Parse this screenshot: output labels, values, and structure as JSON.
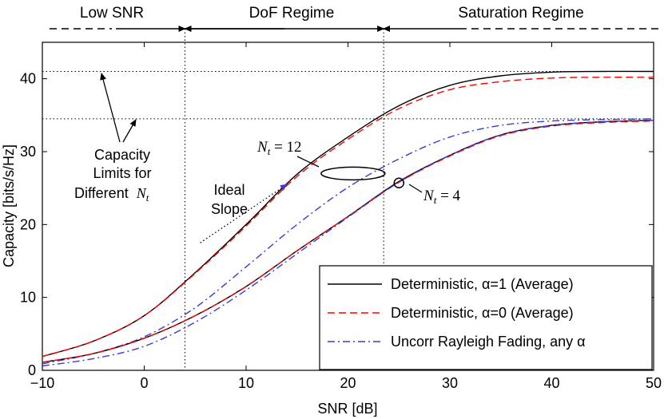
{
  "chart_data": {
    "type": "line",
    "xlabel": "SNR [dB]",
    "ylabel": "Capacity [bits/s/Hz]",
    "xlim": [
      -10,
      50
    ],
    "ylim": [
      0,
      45
    ],
    "xticks": [
      "−10",
      "0",
      "10",
      "20",
      "30",
      "40",
      "50"
    ],
    "xtick_values": [
      -10,
      0,
      10,
      20,
      30,
      40,
      50
    ],
    "yticks": [
      "0",
      "10",
      "20",
      "30",
      "40"
    ],
    "ytick_values": [
      0,
      10,
      20,
      30,
      40
    ],
    "x": [
      -10,
      -5,
      0,
      5,
      10,
      15,
      20,
      25,
      30,
      35,
      40,
      45,
      50
    ],
    "series": [
      {
        "name": "Nt=12 Deterministic a=1",
        "legend_group": "det1",
        "color": "#000000",
        "dash": "",
        "values": [
          1.9,
          4.0,
          7.5,
          13.4,
          20.0,
          26.9,
          32.0,
          36.3,
          39.1,
          40.4,
          40.9,
          41.0,
          41.0
        ]
      },
      {
        "name": "Nt=12 Deterministic a=0",
        "legend_group": "det0",
        "color": "#ff0000",
        "dash": "9,5",
        "values": [
          1.9,
          4.0,
          7.5,
          13.3,
          19.8,
          26.6,
          31.7,
          35.9,
          38.5,
          39.6,
          40.1,
          40.2,
          40.2
        ]
      },
      {
        "name": "Nt=12 Uncorr Rayleigh",
        "legend_group": "ray",
        "color": "#3a3ad8",
        "dash": "9,4,2,4",
        "values": [
          0.9,
          2.3,
          4.6,
          8.6,
          14.2,
          20.0,
          25.1,
          29.0,
          32.0,
          33.6,
          34.2,
          34.4,
          34.5
        ]
      },
      {
        "name": "Nt=4 Deterministic a=1",
        "legend_group": "det1",
        "color": "#000000",
        "dash": "",
        "values": [
          1.1,
          2.3,
          4.4,
          7.5,
          11.5,
          16.4,
          21.1,
          25.9,
          29.5,
          32.3,
          33.6,
          34.1,
          34.3
        ]
      },
      {
        "name": "Nt=4 Deterministic a=0",
        "legend_group": "det0",
        "color": "#ff0000",
        "dash": "9,5",
        "values": [
          1.1,
          2.3,
          4.4,
          7.5,
          11.5,
          16.4,
          21.1,
          25.8,
          29.4,
          32.2,
          33.5,
          34.0,
          34.2
        ]
      },
      {
        "name": "Nt=4 Uncorr Rayleigh",
        "legend_group": "ray",
        "color": "#3a3ad8",
        "dash": "9,4,2,4",
        "values": [
          0.6,
          1.6,
          3.3,
          6.6,
          11.0,
          16.0,
          21.0,
          25.8,
          29.5,
          32.3,
          33.6,
          34.1,
          34.3
        ]
      }
    ],
    "legend": [
      {
        "key": "det1",
        "label": "Deterministic, α=1 (Average)",
        "color": "#000000",
        "dash": ""
      },
      {
        "key": "det0",
        "label": "Deterministic, α=0 (Average)",
        "color": "#ff0000",
        "dash": "9,5"
      },
      {
        "key": "ray",
        "label": "Uncorr Rayleigh Fading, any α",
        "color": "#3a3ad8",
        "dash": "9,4,2,4"
      }
    ],
    "legend_position": "bottom-right",
    "reference_lines": {
      "horizontal_limits": [
        41.0,
        34.5
      ],
      "vertical_boundaries": [
        4,
        23.5
      ]
    },
    "regions": [
      {
        "label": "Low SNR",
        "from": -10,
        "to": 4
      },
      {
        "label": "DoF Regime",
        "from": 4,
        "to": 23.5
      },
      {
        "label": "Saturation Regime",
        "from": 23.5,
        "to": 50
      }
    ],
    "ideal_slope": {
      "label_line1": "Ideal",
      "label_line2": "Slope",
      "from": [
        5.5,
        17.5
      ],
      "to": [
        14,
        25.5
      ]
    },
    "annotations": {
      "capacity_limits": {
        "line1": "Capacity",
        "line2": "Limits for",
        "line3": "Different",
        "math": "N",
        "math_sub": "t"
      },
      "nt12": {
        "label": "N",
        "sub": "t",
        "rest": " = 12",
        "ellipse_center": [
          20.5,
          27.0
        ]
      },
      "nt4": {
        "label": "N",
        "sub": "t",
        "rest": " = 4",
        "circle_center": [
          25,
          25.7
        ]
      }
    }
  }
}
